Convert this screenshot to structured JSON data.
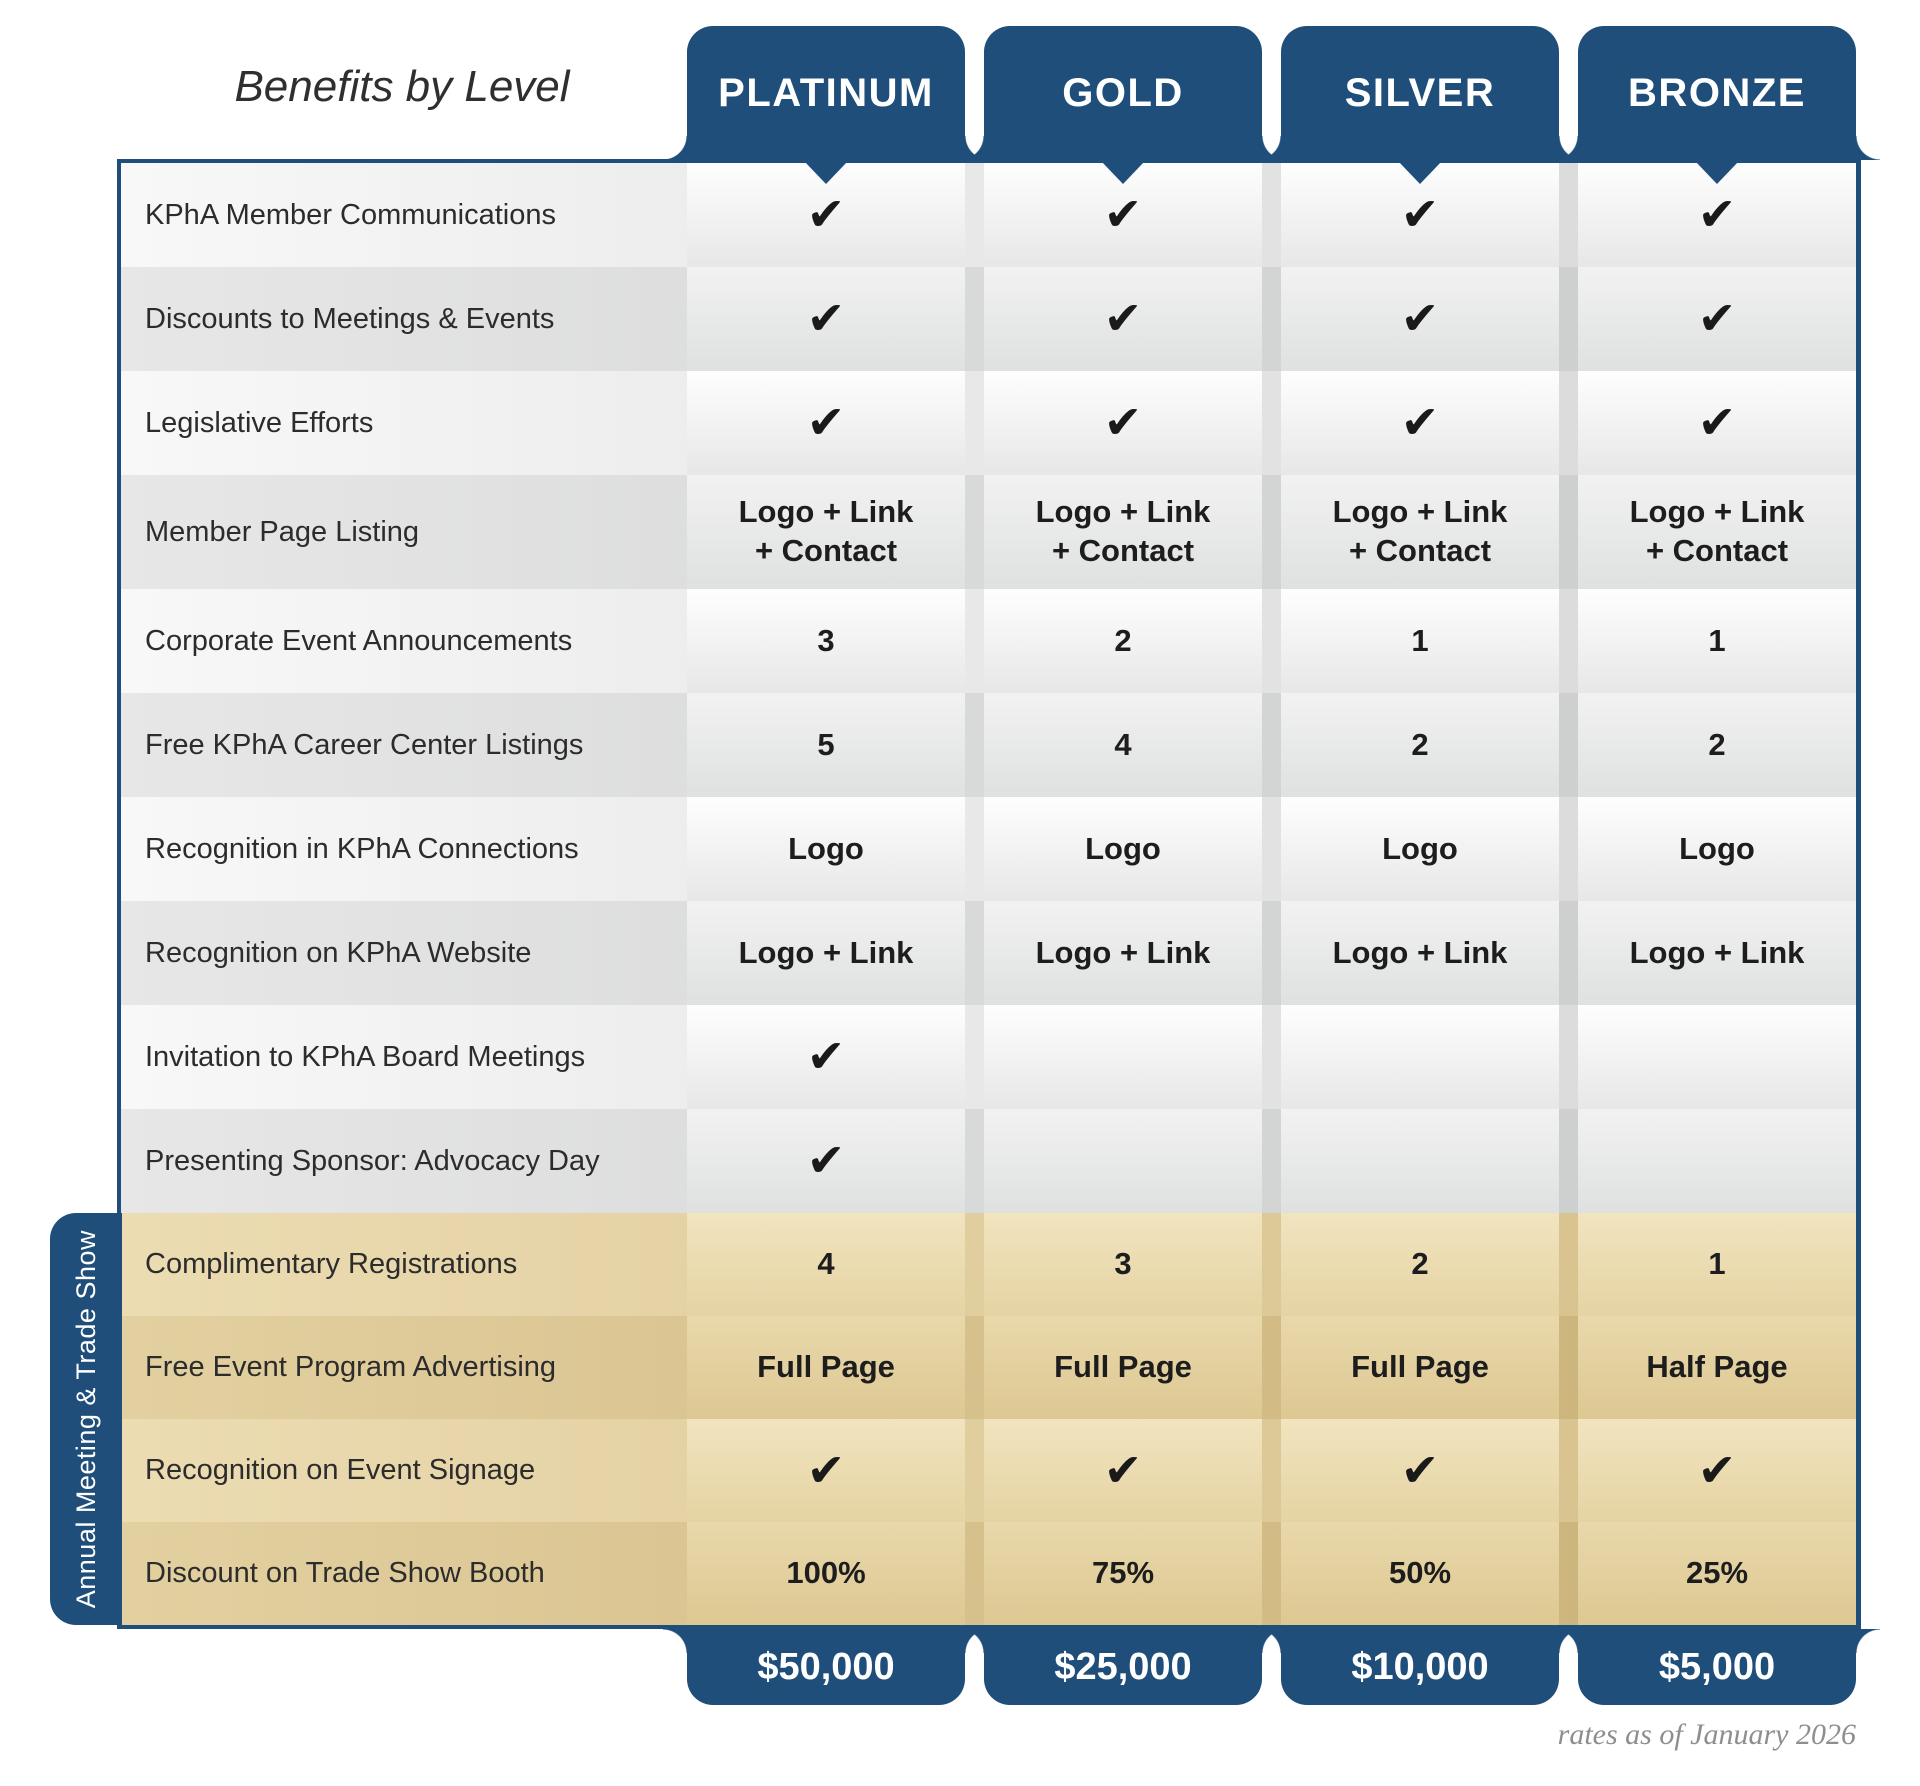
{
  "title": "Benefits by Level",
  "side_label": "Annual Meeting & Trade Show",
  "footnote": "rates as of January 2026",
  "check_glyph": "✔",
  "colors": {
    "brand_blue": "#1e4e79",
    "tan_section": "#e3d0a0",
    "gray_row": "#e7e7e7",
    "check_mark": "#1a1a1a"
  },
  "columns": [
    {
      "name": "PLATINUM",
      "price": "$50,000"
    },
    {
      "name": "GOLD",
      "price": "$25,000"
    },
    {
      "name": "SILVER",
      "price": "$10,000"
    },
    {
      "name": "BRONZE",
      "price": "$5,000"
    }
  ],
  "rows": [
    {
      "label": "KPhA Member Communications",
      "group": "general",
      "cells": [
        "✔",
        "✔",
        "✔",
        "✔"
      ]
    },
    {
      "label": "Discounts to Meetings & Events",
      "group": "general",
      "cells": [
        "✔",
        "✔",
        "✔",
        "✔"
      ]
    },
    {
      "label": "Legislative Efforts",
      "group": "general",
      "cells": [
        "✔",
        "✔",
        "✔",
        "✔"
      ]
    },
    {
      "label": "Member Page Listing",
      "group": "general",
      "cells": [
        "Logo + Link\n+ Contact",
        "Logo + Link\n+ Contact",
        "Logo + Link\n+ Contact",
        "Logo + Link\n+ Contact"
      ]
    },
    {
      "label": "Corporate Event Announcements",
      "group": "general",
      "cells": [
        "3",
        "2",
        "1",
        "1"
      ]
    },
    {
      "label": "Free KPhA Career Center Listings",
      "group": "general",
      "cells": [
        "5",
        "4",
        "2",
        "2"
      ]
    },
    {
      "label": "Recognition in KPhA Connections",
      "group": "general",
      "cells": [
        "Logo",
        "Logo",
        "Logo",
        "Logo"
      ]
    },
    {
      "label": "Recognition on KPhA Website",
      "group": "general",
      "cells": [
        "Logo + Link",
        "Logo + Link",
        "Logo + Link",
        "Logo + Link"
      ]
    },
    {
      "label": "Invitation to KPhA Board Meetings",
      "group": "general",
      "cells": [
        "✔",
        "",
        "",
        ""
      ]
    },
    {
      "label": "Presenting Sponsor: Advocacy Day",
      "group": "general",
      "cells": [
        "✔",
        "",
        "",
        ""
      ]
    },
    {
      "label": "Complimentary Registrations",
      "group": "annual-meeting-trade-show",
      "cells": [
        "4",
        "3",
        "2",
        "1"
      ]
    },
    {
      "label": "Free Event Program Advertising",
      "group": "annual-meeting-trade-show",
      "cells": [
        "Full Page",
        "Full Page",
        "Full Page",
        "Half Page"
      ]
    },
    {
      "label": "Recognition on Event Signage",
      "group": "annual-meeting-trade-show",
      "cells": [
        "✔",
        "✔",
        "✔",
        "✔"
      ]
    },
    {
      "label": "Discount on Trade Show Booth",
      "group": "annual-meeting-trade-show",
      "cells": [
        "100%",
        "75%",
        "50%",
        "25%"
      ]
    }
  ]
}
